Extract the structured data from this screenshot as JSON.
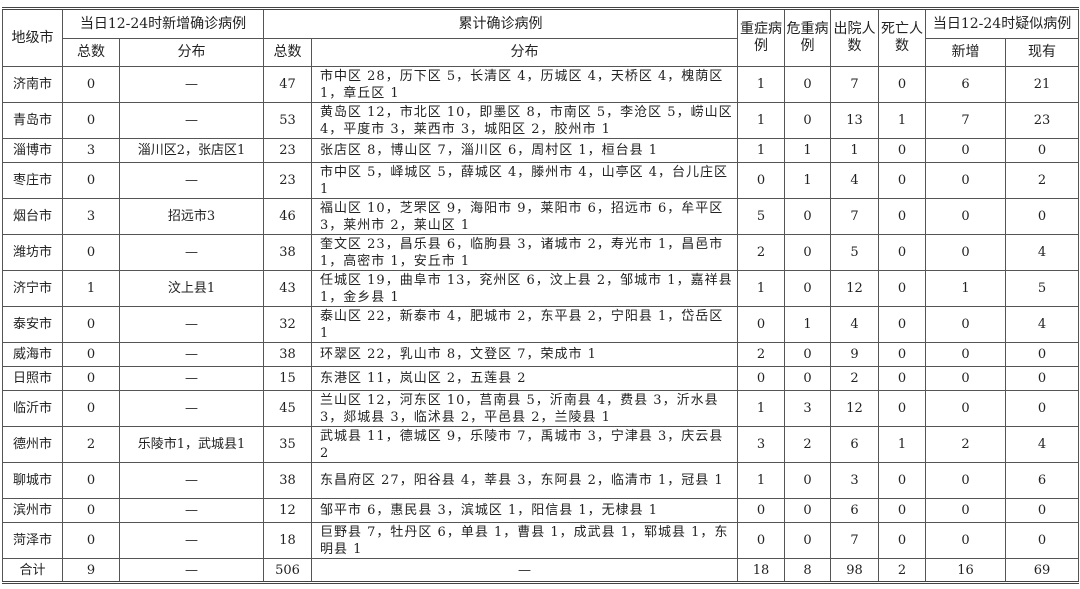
{
  "header": {
    "city": "地级市",
    "new_confirmed": "当日12-24时新增确诊病例",
    "cumulative": "累计确诊病例",
    "severe": "重症病例",
    "critical": "危重病例",
    "discharged": "出院人数",
    "deaths": "死亡人数",
    "suspected": "当日12-24时疑似病例",
    "total": "总数",
    "distribution": "分布",
    "new": "新增",
    "current": "现有"
  },
  "rows": [
    {
      "city": "济南市",
      "new_total": "0",
      "new_dist": "—",
      "cum_total": "47",
      "cum_dist": "市中区 28，历下区 5，长清区 4，历城区 4，天桥区 4，槐荫区 1，章丘区 1",
      "severe": "1",
      "critical": "0",
      "discharged": "7",
      "deaths": "0",
      "susp_new": "6",
      "susp_cur": "21"
    },
    {
      "city": "青岛市",
      "new_total": "0",
      "new_dist": "—",
      "cum_total": "53",
      "cum_dist": "黄岛区 12，市北区 10，即墨区 8，市南区 5，李沧区 5，崂山区 4，平度市 3，莱西市 3，城阳区 2，胶州市 1",
      "severe": "1",
      "critical": "0",
      "discharged": "13",
      "deaths": "1",
      "susp_new": "7",
      "susp_cur": "23"
    },
    {
      "city": "淄博市",
      "new_total": "3",
      "new_dist": "淄川区2，张店区1",
      "cum_total": "23",
      "cum_dist": "张店区 8，博山区 7，淄川区 6，周村区 1，桓台县 1",
      "severe": "1",
      "critical": "1",
      "discharged": "1",
      "deaths": "0",
      "susp_new": "0",
      "susp_cur": "0"
    },
    {
      "city": "枣庄市",
      "new_total": "0",
      "new_dist": "—",
      "cum_total": "23",
      "cum_dist": "市中区 5，峄城区 5，薛城区 4，滕州市 4，山亭区 4，台儿庄区 1",
      "severe": "0",
      "critical": "1",
      "discharged": "4",
      "deaths": "0",
      "susp_new": "0",
      "susp_cur": "2"
    },
    {
      "city": "烟台市",
      "new_total": "3",
      "new_dist": "招远市3",
      "cum_total": "46",
      "cum_dist": "福山区 10，芝罘区 9，海阳市 9，莱阳市 6，招远市 6，牟平区 3，莱州市 2，莱山区 1",
      "severe": "5",
      "critical": "0",
      "discharged": "7",
      "deaths": "0",
      "susp_new": "0",
      "susp_cur": "0"
    },
    {
      "city": "潍坊市",
      "new_total": "0",
      "new_dist": "—",
      "cum_total": "38",
      "cum_dist": "奎文区 23，昌乐县 6，临朐县 3，诸城市 2，寿光市 1，昌邑市 1，高密市 1，安丘市 1",
      "severe": "2",
      "critical": "0",
      "discharged": "5",
      "deaths": "0",
      "susp_new": "0",
      "susp_cur": "4"
    },
    {
      "city": "济宁市",
      "new_total": "1",
      "new_dist": "汶上县1",
      "cum_total": "43",
      "cum_dist": "任城区 19，曲阜市 13，兖州区 6，汶上县 2，邹城市 1，嘉祥县 1，金乡县 1",
      "severe": "1",
      "critical": "0",
      "discharged": "12",
      "deaths": "0",
      "susp_new": "1",
      "susp_cur": "5"
    },
    {
      "city": "泰安市",
      "new_total": "0",
      "new_dist": "—",
      "cum_total": "32",
      "cum_dist": "泰山区 22，新泰市 4，肥城市 2，东平县 2，宁阳县 1，岱岳区 1",
      "severe": "0",
      "critical": "1",
      "discharged": "4",
      "deaths": "0",
      "susp_new": "0",
      "susp_cur": "4"
    },
    {
      "city": "威海市",
      "new_total": "0",
      "new_dist": "—",
      "cum_total": "38",
      "cum_dist": "环翠区 22，乳山市 8，文登区 7，荣成市 1",
      "severe": "2",
      "critical": "0",
      "discharged": "9",
      "deaths": "0",
      "susp_new": "0",
      "susp_cur": "0"
    },
    {
      "city": "日照市",
      "new_total": "0",
      "new_dist": "—",
      "cum_total": "15",
      "cum_dist": "东港区 11，岚山区 2，五莲县 2",
      "severe": "0",
      "critical": "0",
      "discharged": "2",
      "deaths": "0",
      "susp_new": "0",
      "susp_cur": "0"
    },
    {
      "city": "临沂市",
      "new_total": "0",
      "new_dist": "—",
      "cum_total": "45",
      "cum_dist": "兰山区 12，河东区 10，莒南县 5，沂南县 4，费县 3，沂水县 3，郯城县 3，临沭县 2，平邑县 2，兰陵县 1",
      "severe": "1",
      "critical": "3",
      "discharged": "12",
      "deaths": "0",
      "susp_new": "0",
      "susp_cur": "0"
    },
    {
      "city": "德州市",
      "new_total": "2",
      "new_dist": "乐陵市1，武城县1",
      "cum_total": "35",
      "cum_dist": "武城县 11，德城区 9，乐陵市 7，禹城市 3，宁津县 3，庆云县 2",
      "severe": "3",
      "critical": "2",
      "discharged": "6",
      "deaths": "1",
      "susp_new": "2",
      "susp_cur": "4"
    },
    {
      "city": "聊城市",
      "new_total": "0",
      "new_dist": "—",
      "cum_total": "38",
      "cum_dist": "东昌府区 27，阳谷县 4，莘县 3，东阿县 2，临清市 1，冠县 1",
      "severe": "1",
      "critical": "0",
      "discharged": "3",
      "deaths": "0",
      "susp_new": "0",
      "susp_cur": "6"
    },
    {
      "city": "滨州市",
      "new_total": "0",
      "new_dist": "—",
      "cum_total": "12",
      "cum_dist": "邹平市 6，惠民县 3，滨城区 1，阳信县 1，无棣县 1",
      "severe": "0",
      "critical": "0",
      "discharged": "6",
      "deaths": "0",
      "susp_new": "0",
      "susp_cur": "0"
    },
    {
      "city": "菏泽市",
      "new_total": "0",
      "new_dist": "—",
      "cum_total": "18",
      "cum_dist": "巨野县 7，牡丹区 6，单县 1，曹县 1，成武县 1，郓城县 1，东明县 1",
      "severe": "0",
      "critical": "0",
      "discharged": "7",
      "deaths": "0",
      "susp_new": "0",
      "susp_cur": "0"
    }
  ],
  "total_row": {
    "city": "合计",
    "new_total": "9",
    "new_dist": "—",
    "cum_total": "506",
    "cum_dist": "—",
    "severe": "18",
    "critical": "8",
    "discharged": "98",
    "deaths": "2",
    "susp_new": "16",
    "susp_cur": "69"
  }
}
